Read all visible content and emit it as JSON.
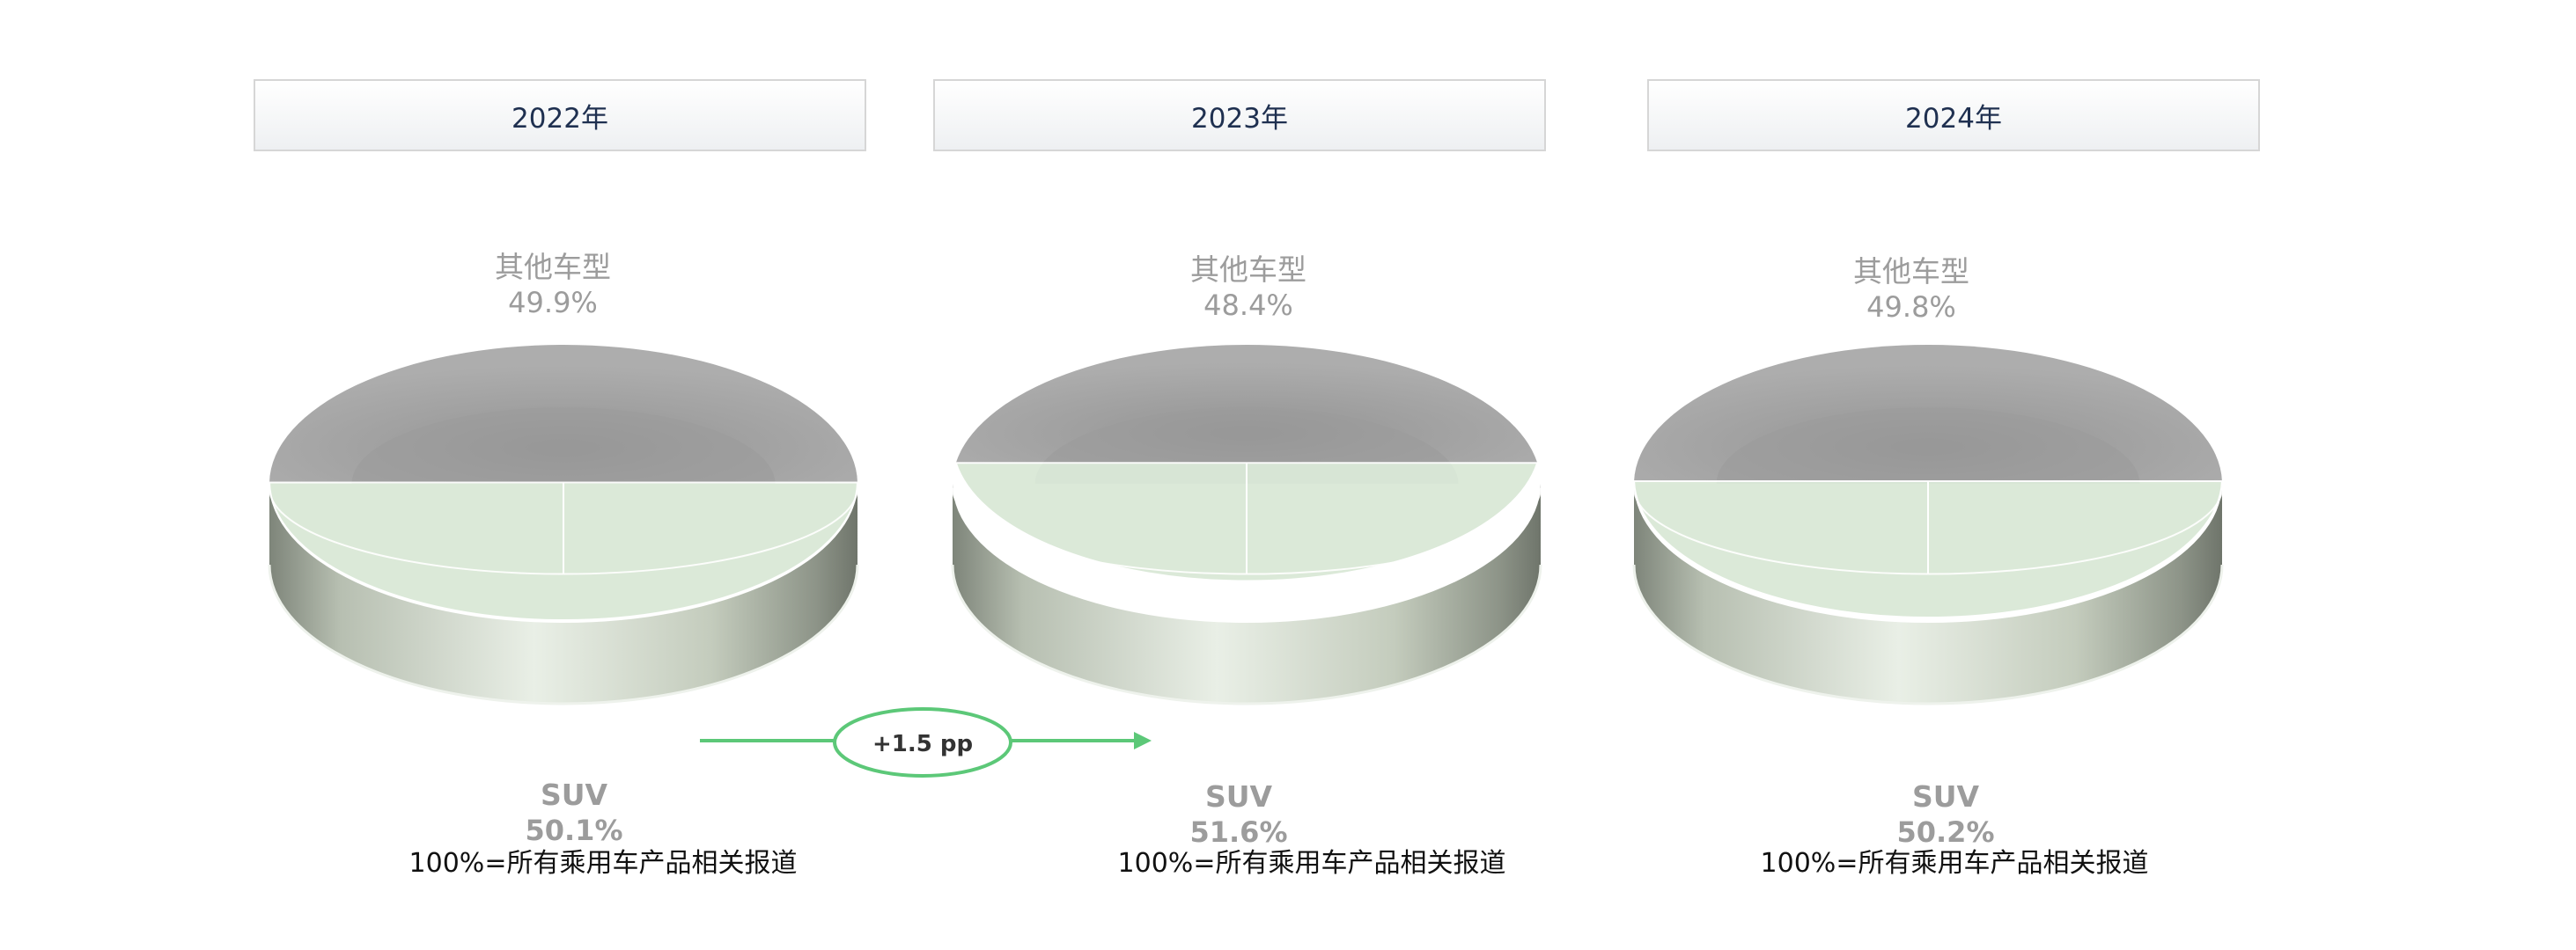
{
  "chart_data": [
    {
      "type": "pie",
      "title": "2022年",
      "slices": [
        {
          "label": "其他车型",
          "value": 49.9,
          "display": "49.9%"
        },
        {
          "label": "SUV",
          "value": 50.1,
          "display": "50.1%"
        }
      ],
      "note": "100%=所有乘用车产品相关报道"
    },
    {
      "type": "pie",
      "title": "2023年",
      "slices": [
        {
          "label": "其他车型",
          "value": 48.4,
          "display": "48.4%"
        },
        {
          "label": "SUV",
          "value": 51.6,
          "display": "51.6%"
        }
      ],
      "note": "100%=所有乘用车产品相关报道"
    },
    {
      "type": "pie",
      "title": "2024年",
      "slices": [
        {
          "label": "其他车型",
          "value": 49.8,
          "display": "49.8%"
        },
        {
          "label": "SUV",
          "value": 50.2,
          "display": "50.2%"
        }
      ],
      "note": "100%=所有乘用车产品相关报道"
    }
  ],
  "annotation": {
    "text": "+1.5 pp",
    "color": "#5cc878"
  },
  "colors": {
    "other": "#a9a9a9",
    "suv_top": "#d7e5d4",
    "suv_side": "#c5cdbf"
  }
}
